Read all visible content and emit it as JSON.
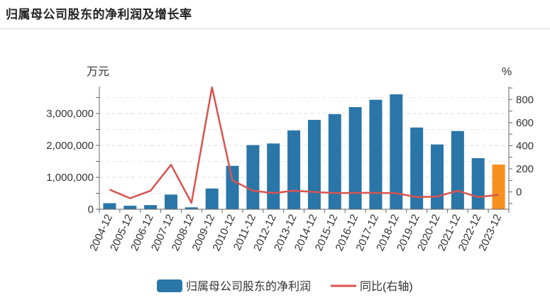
{
  "title": "归属母公司股东的净利润及增长率",
  "chart_data": {
    "type": "bar",
    "categories": [
      "2004-12",
      "2005-12",
      "2006-12",
      "2007-12",
      "2008-12",
      "2009-12",
      "2010-12",
      "2011-12",
      "2012-12",
      "2013-12",
      "2014-12",
      "2015-12",
      "2016-12",
      "2017-12",
      "2018-12",
      "2019-12",
      "2020-12",
      "2021-12",
      "2022-12",
      "2023-12"
    ],
    "y_left_unit": "万元",
    "y_right_unit": "%",
    "y_left_ticks": [
      "0",
      "1,000,000",
      "2,000,000",
      "3,000,000"
    ],
    "y_left_tick_values": [
      0,
      1000000,
      2000000,
      3000000
    ],
    "y_left_range": [
      0,
      3800000
    ],
    "y_right_ticks": [
      "0",
      "200",
      "400",
      "600",
      "800"
    ],
    "y_right_tick_values": [
      0,
      200,
      400,
      600,
      800
    ],
    "y_right_range": [
      -150,
      900
    ],
    "series": [
      {
        "name": "归属母公司股东的净利润",
        "type": "bar",
        "axis": "left",
        "color": "#2a76a8",
        "highlight_color": "#f7901e",
        "highlight_index": 19,
        "values": [
          190000,
          110000,
          130000,
          460000,
          60000,
          650000,
          1360000,
          2010000,
          2060000,
          2470000,
          2800000,
          2980000,
          3200000,
          3430000,
          3600000,
          2560000,
          2030000,
          2450000,
          1600000,
          1400000
        ]
      },
      {
        "name": "同比(右轴)",
        "type": "line",
        "axis": "right",
        "color": "#d9534f",
        "values": [
          20,
          -55,
          10,
          235,
          -95,
          905,
          100,
          10,
          -10,
          10,
          0,
          -10,
          -8,
          -8,
          -12,
          -45,
          -40,
          10,
          -45,
          -25
        ]
      }
    ],
    "legend_position": "bottom",
    "grid": true
  }
}
